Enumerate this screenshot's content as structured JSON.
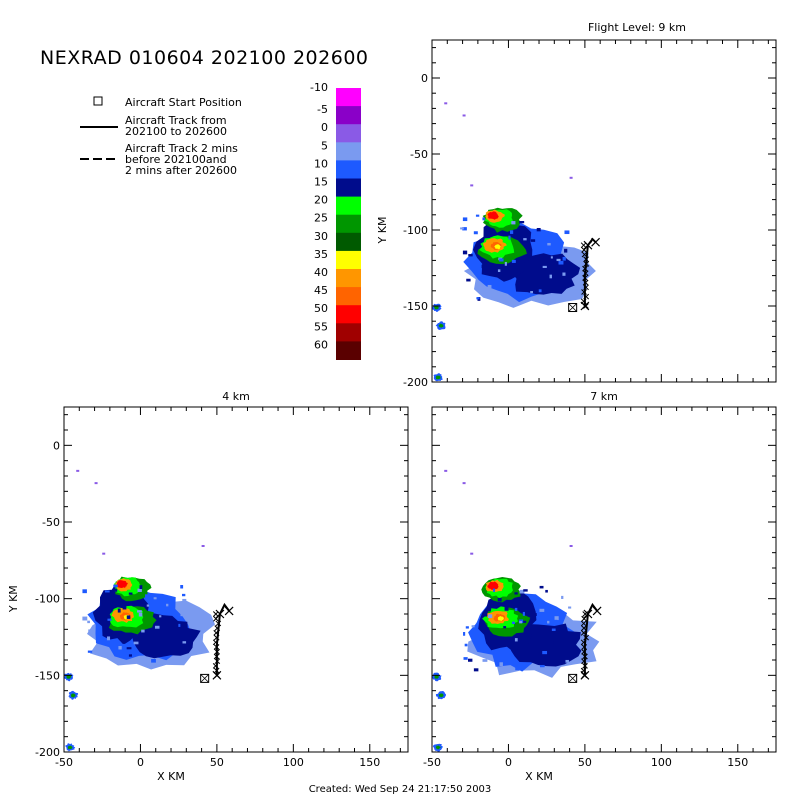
{
  "title": "NEXRAD 010604 202100 202600",
  "footer": "Created: Wed Sep 24 21:17:50 2003",
  "legend": {
    "start_label": "Aircraft Start Position",
    "track_label_line1": "Aircraft Track from",
    "track_label_line2": "202100 to 202600",
    "ext_label_line1": "Aircraft Track 2 mins",
    "ext_label_line2": "before 202100and",
    "ext_label_line3": "2 mins after 202600"
  },
  "colorbar": {
    "labels": [
      "-10",
      "-5",
      "0",
      "5",
      "10",
      "15",
      "20",
      "25",
      "30",
      "35",
      "40",
      "45",
      "50",
      "55",
      "60"
    ],
    "colors": [
      "#ff00ff",
      "#8a00c8",
      "#8a5ae6",
      "#7a9af0",
      "#1e5aff",
      "#000c8c",
      "#00ff00",
      "#009600",
      "#005a00",
      "#ffff00",
      "#ff9600",
      "#ff6400",
      "#ff0000",
      "#a00000",
      "#5a0000"
    ]
  },
  "chart_data": [
    {
      "type": "heatmap",
      "title": "Flight Level: 9 km",
      "xlabel": "",
      "ylabel": "Y KM",
      "xlim": [
        -50,
        175
      ],
      "ylim": [
        -200,
        25
      ],
      "xticks": [],
      "yticks": [
        "0",
        "-50",
        "-100",
        "-150",
        "-200"
      ],
      "storm": {
        "cx": 3,
        "cy": -117,
        "core1": [
          -8,
          -91
        ],
        "core2": [
          -10,
          -109
        ]
      },
      "track": {
        "x": [
          50,
          50,
          52,
          55,
          57
        ],
        "y": [
          -150,
          -130,
          -110,
          -106,
          -108
        ]
      },
      "start": [
        42,
        -151
      ]
    },
    {
      "type": "heatmap",
      "title": "4 km",
      "xlabel": "X KM",
      "ylabel": "Y KM",
      "xlim": [
        -50,
        175
      ],
      "ylim": [
        -200,
        25
      ],
      "xticks": [
        "-50",
        "0",
        "50",
        "100",
        "150"
      ],
      "yticks": [
        "0",
        "-50",
        "-100",
        "-150",
        "-200"
      ],
      "storm": {
        "cx": -5,
        "cy": -113,
        "core1": [
          -10,
          -91
        ],
        "core2": [
          -12,
          -110
        ]
      },
      "track": {
        "x": [
          50,
          50,
          52,
          55,
          58
        ],
        "y": [
          -150,
          -130,
          -110,
          -104,
          -108
        ]
      },
      "start": [
        42,
        -152
      ]
    },
    {
      "type": "heatmap",
      "title": "7 km",
      "xlabel": "X KM",
      "ylabel": "",
      "xlim": [
        -50,
        175
      ],
      "ylim": [
        -200,
        25
      ],
      "xticks": [
        "-50",
        "0",
        "50",
        "100",
        "150"
      ],
      "yticks": [],
      "storm": {
        "cx": 5,
        "cy": -118,
        "core1": [
          -8,
          -92
        ],
        "core2": [
          -8,
          -111
        ]
      },
      "track": {
        "x": [
          50,
          50,
          52,
          55,
          58
        ],
        "y": [
          -150,
          -130,
          -110,
          -104,
          -108
        ]
      },
      "start": [
        42,
        -152
      ]
    }
  ]
}
